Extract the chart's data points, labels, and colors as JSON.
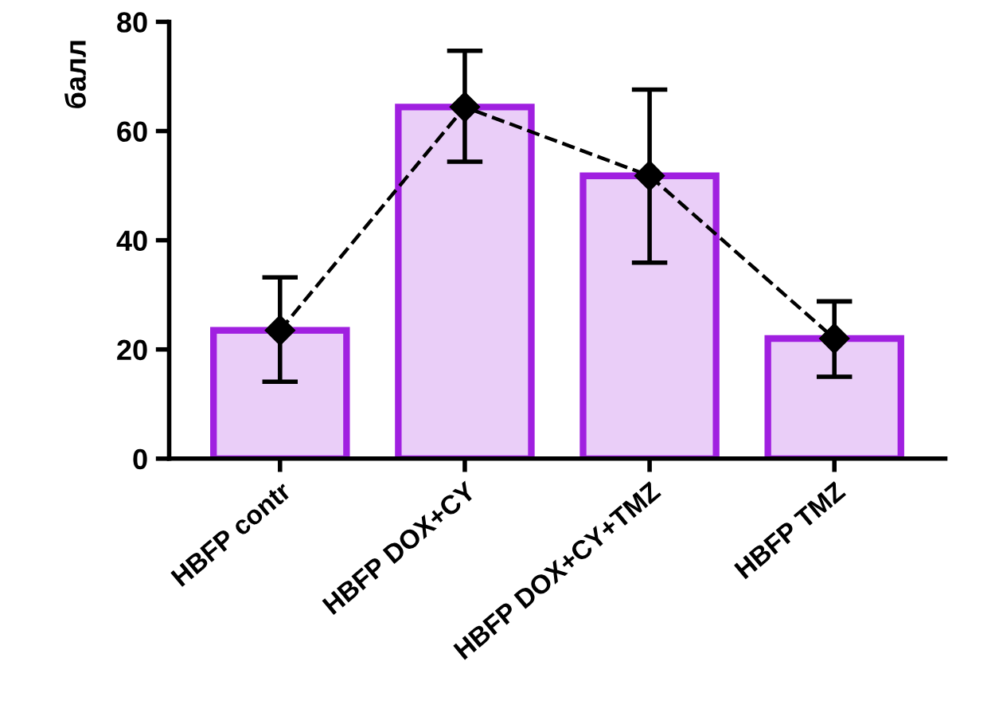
{
  "chart_data": {
    "type": "bar",
    "ylabel": "балл",
    "categories": [
      "HBFP contr",
      "HBFP DOX+CY",
      "HBFP DOX+CY+TMZ",
      "HBFP TMZ"
    ],
    "ylim": [
      0,
      80
    ],
    "yticks": [
      0,
      20,
      40,
      60,
      80
    ],
    "grid": false,
    "legend": false,
    "series": [
      {
        "color": "#a020e0",
        "values": [
          23.5,
          64.4,
          51.8,
          22
        ],
        "errors": [
          [
            14.1,
            33.2
          ],
          [
            54.4,
            74.7
          ],
          [
            35.9,
            67.6
          ],
          [
            15,
            28.8
          ]
        ]
      },
      {
        "type": "line",
        "color": "#000000",
        "values": [
          23.5,
          64.4,
          51.8,
          22
        ],
        "marker": "diamond",
        "line_style": "dashed"
      }
    ]
  }
}
